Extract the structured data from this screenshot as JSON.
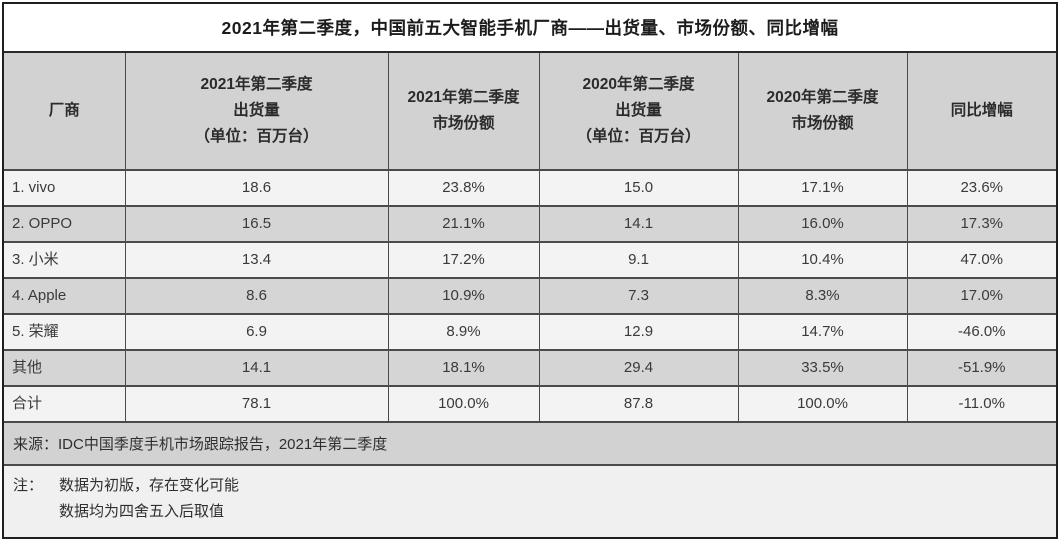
{
  "chart_data": {
    "type": "table",
    "title": "2021年第二季度，中国前五大智能手机厂商——出货量、市场份额、同比增幅",
    "columns": [
      {
        "key": "vendor",
        "label": "厂商",
        "lines": [
          "厂商"
        ]
      },
      {
        "key": "shipments-2021q2",
        "label": "2021年第二季度出货量（单位：百万台）",
        "lines": [
          "2021年第二季度",
          "出货量",
          "（单位：百万台）"
        ]
      },
      {
        "key": "share-2021q2",
        "label": "2021年第二季度市场份额",
        "lines": [
          "2021年第二季度",
          "市场份额"
        ]
      },
      {
        "key": "shipments-2020q2",
        "label": "2020年第二季度出货量（单位：百万台）",
        "lines": [
          "2020年第二季度",
          "出货量",
          "（单位：百万台）"
        ]
      },
      {
        "key": "share-2020q2",
        "label": "2020年第二季度市场份额",
        "lines": [
          "2020年第二季度",
          "市场份额"
        ]
      },
      {
        "key": "yoy-growth",
        "label": "同比增幅",
        "lines": [
          "同比增幅"
        ]
      }
    ],
    "rows": [
      {
        "cells": [
          "1. vivo",
          "18.6",
          "23.8%",
          "15.0",
          "17.1%",
          "23.6%"
        ]
      },
      {
        "cells": [
          "2. OPPO",
          "16.5",
          "21.1%",
          "14.1",
          "16.0%",
          "17.3%"
        ]
      },
      {
        "cells": [
          "3. 小米",
          "13.4",
          "17.2%",
          "9.1",
          "10.4%",
          "47.0%"
        ]
      },
      {
        "cells": [
          "4. Apple",
          "8.6",
          "10.9%",
          "7.3",
          "8.3%",
          "17.0%"
        ]
      },
      {
        "cells": [
          "5. 荣耀",
          "6.9",
          "8.9%",
          "12.9",
          "14.7%",
          "-46.0%"
        ]
      },
      {
        "cells": [
          "其他",
          "14.1",
          "18.1%",
          "29.4",
          "33.5%",
          "-51.9%"
        ]
      },
      {
        "cells": [
          "合计",
          "78.1",
          "100.0%",
          "87.8",
          "100.0%",
          "-11.0%"
        ]
      }
    ],
    "source": "来源：IDC中国季度手机市场跟踪报告，2021年第二季度",
    "note_label": "注：",
    "notes": [
      "数据为初版，存在变化可能",
      "数据均为四舍五入后取值"
    ]
  },
  "colors": {
    "header_bg": "#d2d2d2",
    "row_light": "#f3f3f3",
    "row_dark": "#d5d5d5",
    "source_bg": "#d2d2d2",
    "note_bg": "#f0f0f0",
    "grid_border": "#4a4a4a",
    "outer_border": "#1f1f1f",
    "text": "#2f2f2f"
  }
}
